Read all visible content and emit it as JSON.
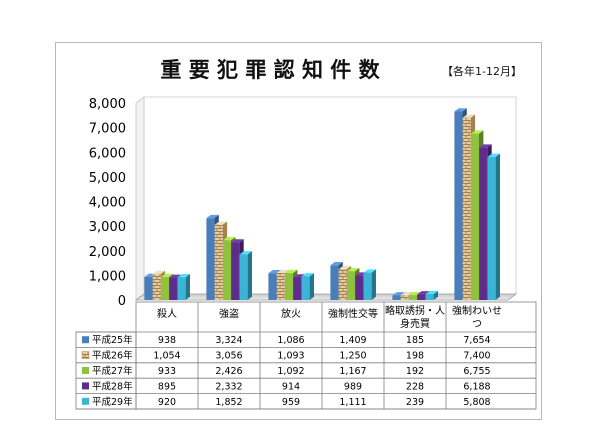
{
  "chart_data": {
    "type": "bar",
    "title": "重 要 犯 罪 認 知 件 数",
    "subtitle": "【各年1-12月】",
    "categories": [
      "殺人",
      "強盗",
      "放火",
      "強制性交等",
      "略取誘拐・人身売買",
      "強制わいせつ"
    ],
    "category_display": [
      [
        "殺人"
      ],
      [
        "強盗"
      ],
      [
        "放火"
      ],
      [
        "強制性交等"
      ],
      [
        "略取誘拐・人",
        "身売買"
      ],
      [
        "強制わいせ",
        "つ"
      ]
    ],
    "yticks": [
      "0",
      "1,000",
      "2,000",
      "3,000",
      "4,000",
      "5,000",
      "6,000",
      "7,000",
      "8,000"
    ],
    "ylim": [
      0,
      8000
    ],
    "grid": false,
    "legend": "table-below",
    "series": [
      {
        "name": "平成25年",
        "color": "#4a7ebb",
        "values": [
          938,
          3324,
          1086,
          1409,
          185,
          7654
        ],
        "labels": [
          "938",
          "3,324",
          "1,086",
          "1,409",
          "185",
          "7,654"
        ]
      },
      {
        "name": "平成26年",
        "color": "#c8a878",
        "values": [
          1054,
          3056,
          1093,
          1250,
          198,
          7400
        ],
        "labels": [
          "1,054",
          "3,056",
          "1,093",
          "1,250",
          "198",
          "7,400"
        ]
      },
      {
        "name": "平成27年",
        "color": "#8fc23f",
        "values": [
          933,
          2426,
          1092,
          1167,
          192,
          6755
        ],
        "labels": [
          "933",
          "2,426",
          "1,092",
          "1,167",
          "192",
          "6,755"
        ]
      },
      {
        "name": "平成28年",
        "color": "#5e2d8c",
        "values": [
          895,
          2332,
          914,
          989,
          228,
          6188
        ],
        "labels": [
          "895",
          "2,332",
          "914",
          "989",
          "228",
          "6,188"
        ]
      },
      {
        "name": "平成29年",
        "color": "#3cb4d6",
        "values": [
          920,
          1852,
          959,
          1111,
          239,
          5808
        ],
        "labels": [
          "920",
          "1,852",
          "959",
          "1,111",
          "239",
          "5,808"
        ]
      }
    ]
  }
}
